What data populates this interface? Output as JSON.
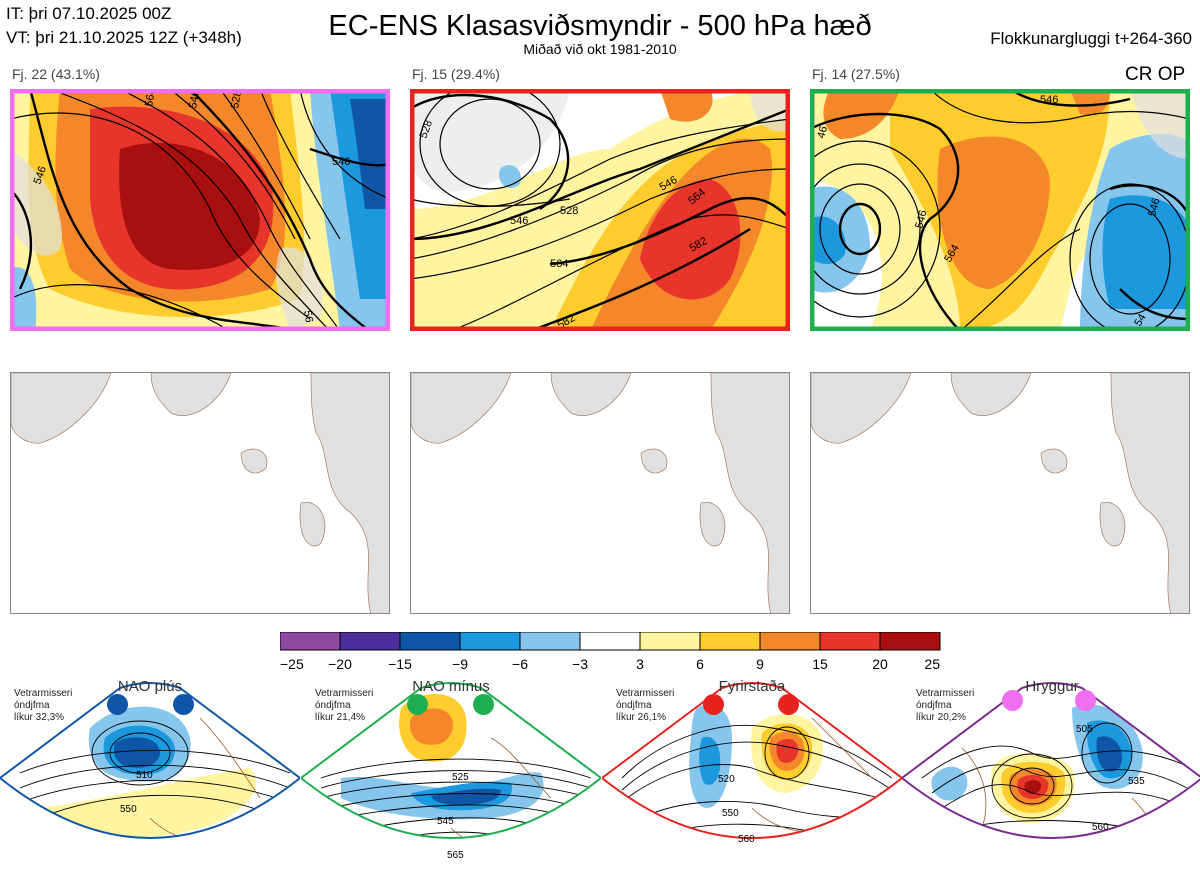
{
  "header": {
    "init_time": "IT: þri 07.10.2025 00Z",
    "valid_time": "VT: þri 21.10.2025 12Z  (+348h)",
    "title": "EC-ENS Klasasviðsmyndir - 500 hPa hæð",
    "subtitle": "Miðað við okt 1981-2010",
    "cluster_window": "Flokkunargluggi t+264-360",
    "cr_op": "CR OP"
  },
  "clusters": [
    {
      "label": "Fj. 22 (43.1%)",
      "color": "#f06ef0",
      "contours": [
        "546",
        "564",
        "546",
        "528",
        "546",
        "56"
      ]
    },
    {
      "label": "Fj. 15 (29.4%)",
      "color": "#e8231f",
      "contours": [
        "528",
        "546",
        "528",
        "564",
        "546",
        "564",
        "582",
        "582"
      ]
    },
    {
      "label": "Fj. 14 (27.5%)",
      "color": "#1fae4f",
      "contours": [
        "546",
        "46",
        "546",
        "564",
        "546",
        "54"
      ]
    }
  ],
  "colorbar": {
    "colors": [
      "#8e4a9e",
      "#4a2f9a",
      "#0f56a6",
      "#1b98de",
      "#86c6ec",
      "#ffffff",
      "#fff4a0",
      "#ffcc2e",
      "#f3872a",
      "#e8352c",
      "#a8100f"
    ],
    "ticks": [
      "−25",
      "−20",
      "−15",
      "−9",
      "−6",
      "−3",
      "3",
      "6",
      "9",
      "15",
      "20",
      "25"
    ]
  },
  "regimes": [
    {
      "name": "NAO plús",
      "stats": [
        "Vetrarmisseri",
        "óndjfma",
        "líkur 32,3%"
      ],
      "color": "#0f56a6",
      "dot_color": "#0f56a6",
      "contours": [
        "510",
        "550"
      ]
    },
    {
      "name": "NAO mínus",
      "stats": [
        "Vetrarmisseri",
        "óndjfma",
        "líkur 21,4%"
      ],
      "color": "#1fae4f",
      "dot_color": "#1fae4f",
      "contours": [
        "525",
        "545",
        "565"
      ]
    },
    {
      "name": "Fyrirstaða",
      "stats": [
        "Vetrarmisseri",
        "óndjfma",
        "líkur 26,1%"
      ],
      "color": "#e8231f",
      "dot_color": "#e8231f",
      "contours": [
        "520",
        "550",
        "560"
      ]
    },
    {
      "name": "Hryggur",
      "stats": [
        "Vetrarmisseri",
        "óndjfma",
        "líkur 20,2%"
      ],
      "color": "#7b2c8f",
      "dot_color": "#f06ef0",
      "contours": [
        "505",
        "535",
        "560"
      ]
    }
  ]
}
